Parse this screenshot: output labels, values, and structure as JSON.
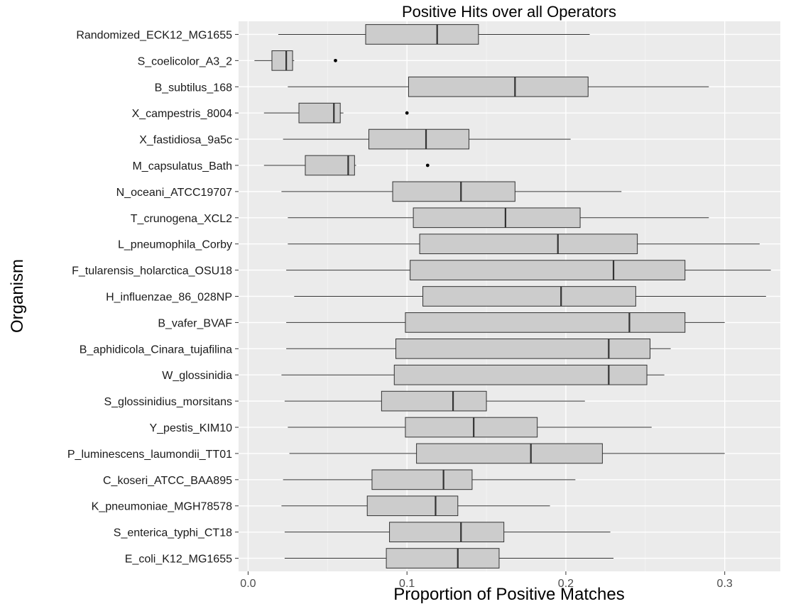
{
  "chart_data": {
    "type": "boxplot",
    "title": "Positive Hits over all Operators",
    "xlabel": "Proportion of Positive Matches",
    "ylabel": "Organism",
    "xlim": [
      -0.006,
      0.335
    ],
    "x_ticks": [
      0.0,
      0.1,
      0.2,
      0.3
    ],
    "x_tick_labels": [
      "0.0",
      "0.1",
      "0.2",
      "0.3"
    ],
    "grid": true,
    "box_fill": "#cccccc",
    "panel_background": "#ebebeb",
    "categories": [
      {
        "name": "Randomized_ECK12_MG1655",
        "min": 0.019,
        "q1": 0.074,
        "median": 0.119,
        "q3": 0.145,
        "max": 0.215,
        "outliers": []
      },
      {
        "name": "S_coelicolor_A3_2",
        "min": 0.004,
        "q1": 0.015,
        "median": 0.024,
        "q3": 0.028,
        "max": 0.029,
        "outliers": [
          0.055
        ]
      },
      {
        "name": "B_subtilus_168",
        "min": 0.025,
        "q1": 0.101,
        "median": 0.168,
        "q3": 0.214,
        "max": 0.29,
        "outliers": []
      },
      {
        "name": "X_campestris_8004",
        "min": 0.01,
        "q1": 0.032,
        "median": 0.054,
        "q3": 0.058,
        "max": 0.06,
        "outliers": [
          0.1
        ]
      },
      {
        "name": "X_fastidiosa_9a5c",
        "min": 0.022,
        "q1": 0.076,
        "median": 0.112,
        "q3": 0.139,
        "max": 0.203,
        "outliers": []
      },
      {
        "name": "M_capsulatus_Bath",
        "min": 0.01,
        "q1": 0.036,
        "median": 0.063,
        "q3": 0.067,
        "max": 0.068,
        "outliers": [
          0.113
        ]
      },
      {
        "name": "N_oceani_ATCC19707",
        "min": 0.021,
        "q1": 0.091,
        "median": 0.134,
        "q3": 0.168,
        "max": 0.235,
        "outliers": []
      },
      {
        "name": "T_crunogena_XCL2",
        "min": 0.025,
        "q1": 0.104,
        "median": 0.162,
        "q3": 0.209,
        "max": 0.29,
        "outliers": []
      },
      {
        "name": "L_pneumophila_Corby",
        "min": 0.025,
        "q1": 0.108,
        "median": 0.195,
        "q3": 0.245,
        "max": 0.322,
        "outliers": []
      },
      {
        "name": "F_tularensis_holarctica_OSU18",
        "min": 0.024,
        "q1": 0.102,
        "median": 0.23,
        "q3": 0.275,
        "max": 0.329,
        "outliers": []
      },
      {
        "name": "H_influenzae_86_028NP",
        "min": 0.029,
        "q1": 0.11,
        "median": 0.197,
        "q3": 0.244,
        "max": 0.326,
        "outliers": []
      },
      {
        "name": "B_vafer_BVAF",
        "min": 0.024,
        "q1": 0.099,
        "median": 0.24,
        "q3": 0.275,
        "max": 0.3,
        "outliers": []
      },
      {
        "name": "B_aphidicola_Cinara_tujafilina",
        "min": 0.024,
        "q1": 0.093,
        "median": 0.227,
        "q3": 0.253,
        "max": 0.266,
        "outliers": []
      },
      {
        "name": "W_glossinidia",
        "min": 0.021,
        "q1": 0.092,
        "median": 0.227,
        "q3": 0.251,
        "max": 0.262,
        "outliers": []
      },
      {
        "name": "S_glossinidius_morsitans",
        "min": 0.023,
        "q1": 0.084,
        "median": 0.129,
        "q3": 0.15,
        "max": 0.212,
        "outliers": []
      },
      {
        "name": "Y_pestis_KIM10",
        "min": 0.025,
        "q1": 0.099,
        "median": 0.142,
        "q3": 0.182,
        "max": 0.254,
        "outliers": []
      },
      {
        "name": "P_luminescens_laumondii_TT01",
        "min": 0.026,
        "q1": 0.106,
        "median": 0.178,
        "q3": 0.223,
        "max": 0.3,
        "outliers": []
      },
      {
        "name": "C_koseri_ATCC_BAA895",
        "min": 0.022,
        "q1": 0.078,
        "median": 0.123,
        "q3": 0.141,
        "max": 0.206,
        "outliers": []
      },
      {
        "name": "K_pneumoniae_MGH78578",
        "min": 0.021,
        "q1": 0.075,
        "median": 0.118,
        "q3": 0.132,
        "max": 0.19,
        "outliers": []
      },
      {
        "name": "S_enterica_typhi_CT18",
        "min": 0.023,
        "q1": 0.089,
        "median": 0.134,
        "q3": 0.161,
        "max": 0.228,
        "outliers": []
      },
      {
        "name": "E_coli_K12_MG1655",
        "min": 0.023,
        "q1": 0.087,
        "median": 0.132,
        "q3": 0.158,
        "max": 0.23,
        "outliers": []
      }
    ]
  }
}
